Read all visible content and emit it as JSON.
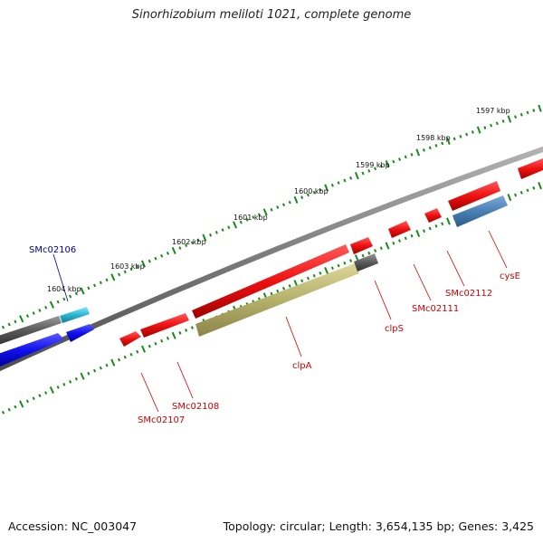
{
  "title": "Sinorhizobium meliloti 1021, complete genome",
  "footer": {
    "accession": "Accession: NC_003047",
    "topology": "Topology: circular; Length: 3,654,135 bp; Genes: 3,425"
  },
  "ruler": {
    "labels": [
      "1597 kbp",
      "1598 kbp",
      "1599 kbp",
      "1600 kbp",
      "1601 kbp",
      "1602 kbp",
      "1603 kbp",
      "1604 kbp"
    ]
  },
  "genes": [
    {
      "label": "SMc02106",
      "color": "#000099"
    },
    {
      "label": "SMc02107",
      "color": "#cc0000"
    },
    {
      "label": "SMc02108",
      "color": "#cc0000"
    },
    {
      "label": "clpA",
      "color": "#cc0000"
    },
    {
      "label": "clpS",
      "color": "#cc0000"
    },
    {
      "label": "SMc02111",
      "color": "#cc0000"
    },
    {
      "label": "SMc02112",
      "color": "#cc0000"
    },
    {
      "label": "cysE",
      "color": "#cc0000"
    }
  ],
  "colors": {
    "forward_gene": "#ee1111",
    "reverse_gene": "#1111ee",
    "backbone": "#7a7a7a",
    "tick": "#1a8a1a",
    "olive": "#b5b06a",
    "steel": "#4a7fb5",
    "cyan": "#29b6d6",
    "gray_gene": "#5a5a5a"
  }
}
